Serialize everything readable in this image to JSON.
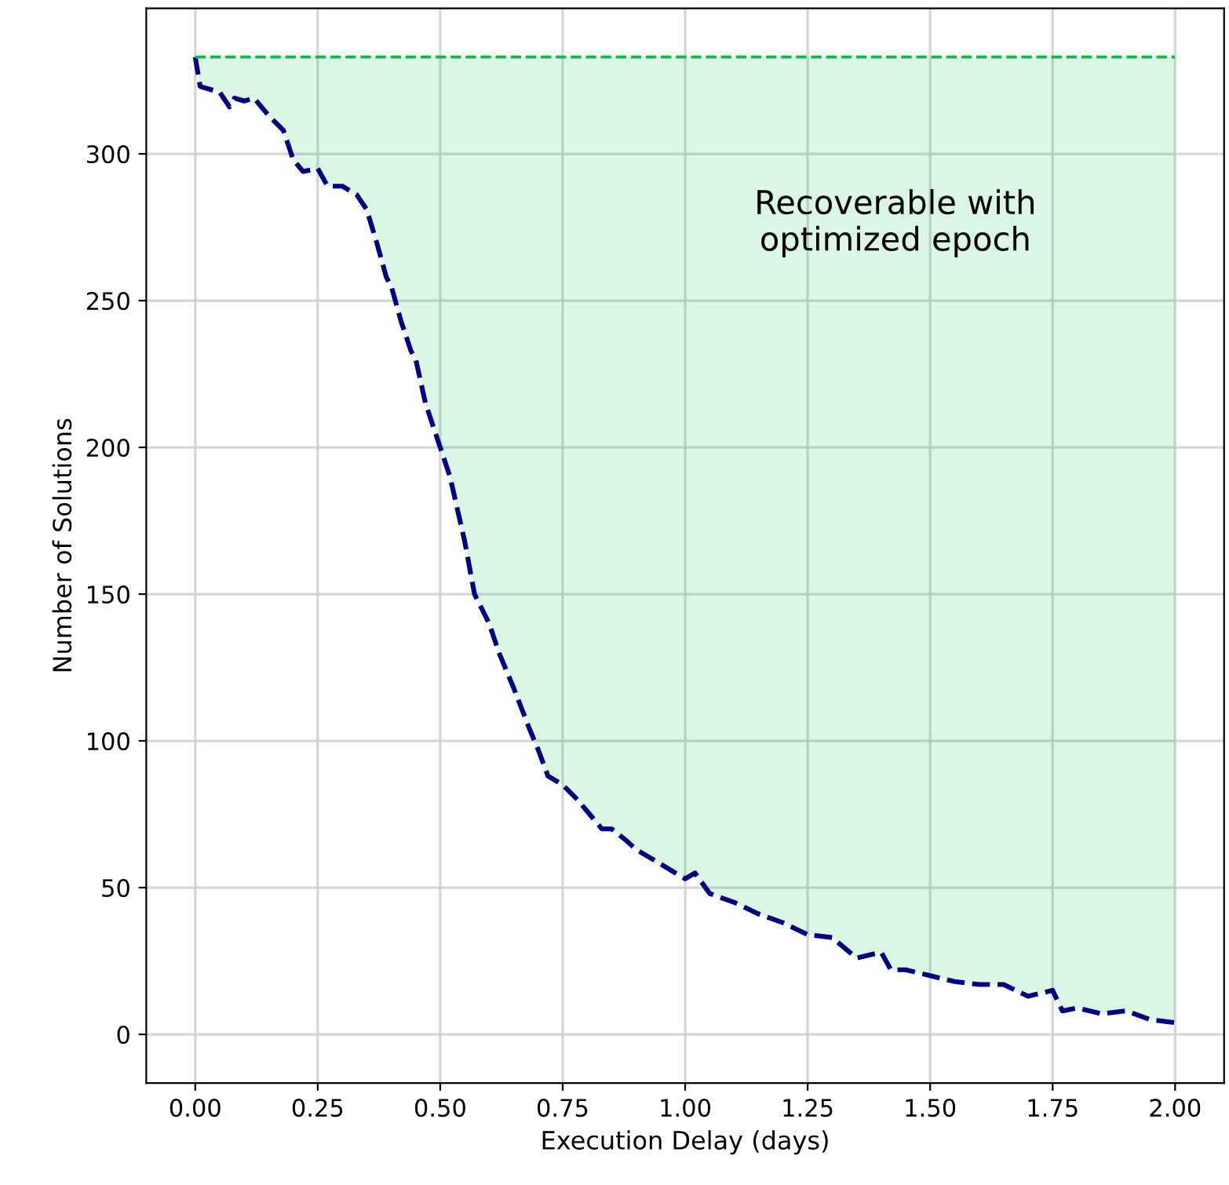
{
  "chart_data": {
    "type": "line",
    "xlabel": "Execution Delay (days)",
    "ylabel": "Number of Solutions",
    "x": [
      0.0,
      0.01,
      0.05,
      0.07,
      0.08,
      0.1,
      0.12,
      0.15,
      0.18,
      0.2,
      0.22,
      0.25,
      0.27,
      0.3,
      0.33,
      0.35,
      0.37,
      0.39,
      0.4,
      0.42,
      0.44,
      0.45,
      0.47,
      0.5,
      0.52,
      0.55,
      0.57,
      0.6,
      0.62,
      0.65,
      0.68,
      0.7,
      0.72,
      0.75,
      0.78,
      0.8,
      0.83,
      0.85,
      0.88,
      0.9,
      0.95,
      1.0,
      1.02,
      1.05,
      1.1,
      1.15,
      1.2,
      1.25,
      1.3,
      1.35,
      1.4,
      1.42,
      1.45,
      1.5,
      1.55,
      1.6,
      1.65,
      1.7,
      1.75,
      1.77,
      1.8,
      1.85,
      1.9,
      1.95,
      2.0
    ],
    "series": [
      {
        "color": "#000080",
        "line_style": "dashed",
        "values": [
          333,
          323,
          321,
          316,
          319,
          318,
          319,
          313,
          308,
          298,
          294,
          295,
          289,
          289,
          286,
          281,
          270,
          258,
          255,
          243,
          233,
          230,
          215,
          200,
          190,
          168,
          150,
          140,
          130,
          118,
          105,
          97,
          88,
          85,
          80,
          76,
          70,
          70,
          66,
          63,
          58,
          53,
          55,
          48,
          45,
          41,
          38,
          34,
          33,
          26,
          28,
          22,
          22,
          20,
          18,
          17,
          17,
          13,
          15,
          8,
          9,
          7,
          8,
          5,
          4
        ]
      }
    ],
    "ref_lines": [
      {
        "axis": "y",
        "value": 333,
        "color": "#00c040",
        "line_style": "dashed"
      }
    ],
    "annotations": [
      "Recoverable with\noptimized epoch"
    ],
    "xlim": [
      -0.1,
      2.1
    ],
    "ylim": [
      -16.6,
      349.6
    ],
    "xticks": [
      {
        "value": 0,
        "label": "0.00"
      },
      {
        "value": 0.25,
        "label": "0.25"
      },
      {
        "value": 0.5,
        "label": "0.50"
      },
      {
        "value": 0.75,
        "label": "0.75"
      },
      {
        "value": 1,
        "label": "1.00"
      },
      {
        "value": 1.25,
        "label": "1.25"
      },
      {
        "value": 1.5,
        "label": "1.50"
      },
      {
        "value": 1.75,
        "label": "1.75"
      },
      {
        "value": 2,
        "label": "2.00"
      }
    ],
    "yticks": [
      0,
      50,
      100,
      150,
      200,
      250,
      300
    ],
    "grid": true
  }
}
